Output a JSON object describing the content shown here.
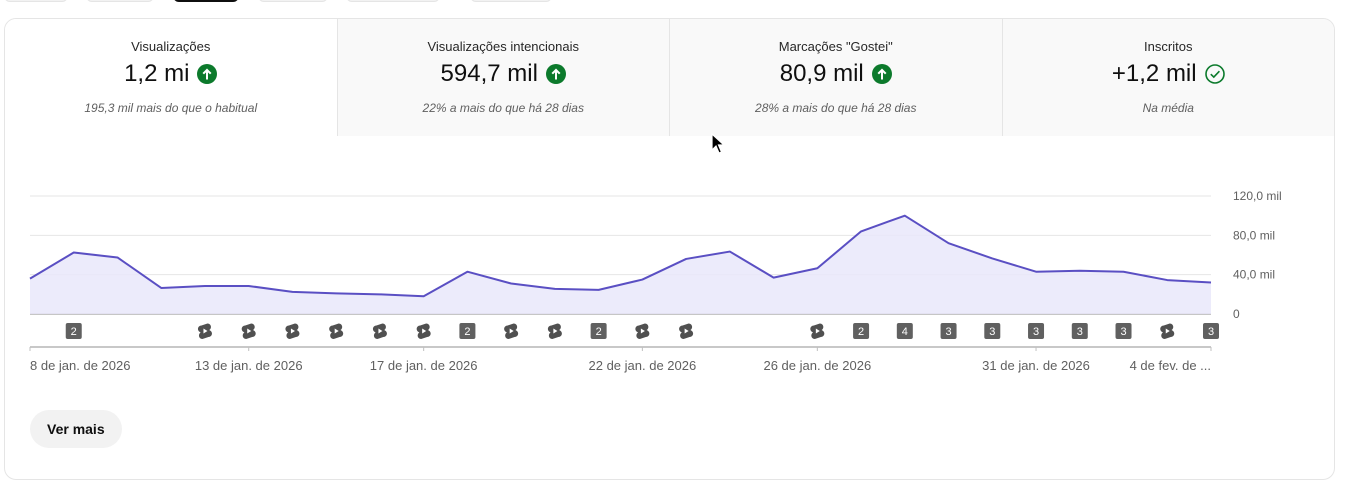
{
  "tabs": [
    {
      "title": "Visualizações",
      "value": "1,2 mi",
      "icon": "arrow-up-circle-icon",
      "subtitle": "195,3 mil mais do que o habitual"
    },
    {
      "title": "Visualizações intencionais",
      "value": "594,7 mil",
      "icon": "arrow-up-circle-icon",
      "subtitle": "22% a mais do que há 28 dias"
    },
    {
      "title": "Marcações \"Gostei\"",
      "value": "80,9 mil",
      "icon": "arrow-up-circle-icon",
      "subtitle": "28% a mais do que há 28 dias"
    },
    {
      "title": "Inscritos",
      "value": "+1,2 mil",
      "icon": "check-circle-icon",
      "subtitle": "Na média"
    }
  ],
  "colors": {
    "up": "#0c7a2c",
    "line": "#5a4fc3",
    "area": "#e9e8fa"
  },
  "chart_data": {
    "type": "area",
    "x": [
      "8/1",
      "9/1",
      "10/1",
      "11/1",
      "12/1",
      "13/1",
      "14/1",
      "15/1",
      "16/1",
      "17/1",
      "18/1",
      "19/1",
      "20/1",
      "21/1",
      "22/1",
      "23/1",
      "24/1",
      "25/1",
      "26/1",
      "27/1",
      "28/1",
      "29/1",
      "30/1",
      "31/1",
      "1/2",
      "2/2",
      "3/2",
      "4/2"
    ],
    "values": [
      36000,
      62500,
      57500,
      26500,
      28500,
      28500,
      22500,
      21000,
      20000,
      18000,
      43000,
      31000,
      25500,
      24500,
      35000,
      56000,
      63500,
      37000,
      46500,
      84000,
      100000,
      72000,
      56500,
      43000,
      44000,
      43000,
      34500,
      32000
    ],
    "ylim": [
      0,
      120000
    ],
    "y_ticks": [
      {
        "value": 0,
        "label": "0"
      },
      {
        "value": 40000,
        "label": "40,0 mil"
      },
      {
        "value": 80000,
        "label": "80,0 mil"
      },
      {
        "value": 120000,
        "label": "120,0 mil"
      }
    ],
    "x_tick_labels": [
      {
        "index": 0,
        "label": "8 de jan. de 2026"
      },
      {
        "index": 5,
        "label": "13 de jan. de 2026"
      },
      {
        "index": 9,
        "label": "17 de jan. de 2026"
      },
      {
        "index": 14,
        "label": "22 de jan. de 2026"
      },
      {
        "index": 18,
        "label": "26 de jan. de 2026"
      },
      {
        "index": 23,
        "label": "31 de jan. de 2026"
      },
      {
        "index": 27,
        "label": "4 de fev. de ..."
      }
    ],
    "markers": [
      {
        "index": 1,
        "type": "count",
        "label": "2"
      },
      {
        "index": 4,
        "type": "shorts"
      },
      {
        "index": 5,
        "type": "shorts"
      },
      {
        "index": 6,
        "type": "shorts"
      },
      {
        "index": 7,
        "type": "shorts"
      },
      {
        "index": 8,
        "type": "shorts"
      },
      {
        "index": 9,
        "type": "shorts"
      },
      {
        "index": 10,
        "type": "count",
        "label": "2"
      },
      {
        "index": 11,
        "type": "shorts"
      },
      {
        "index": 12,
        "type": "shorts"
      },
      {
        "index": 13,
        "type": "count",
        "label": "2"
      },
      {
        "index": 14,
        "type": "shorts"
      },
      {
        "index": 15,
        "type": "shorts"
      },
      {
        "index": 18,
        "type": "shorts"
      },
      {
        "index": 19,
        "type": "count",
        "label": "2"
      },
      {
        "index": 20,
        "type": "count",
        "label": "4"
      },
      {
        "index": 21,
        "type": "count",
        "label": "3"
      },
      {
        "index": 22,
        "type": "count",
        "label": "3"
      },
      {
        "index": 23,
        "type": "count",
        "label": "3"
      },
      {
        "index": 24,
        "type": "count",
        "label": "3"
      },
      {
        "index": 25,
        "type": "count",
        "label": "3"
      },
      {
        "index": 26,
        "type": "shorts"
      },
      {
        "index": 27,
        "type": "count",
        "label": "3"
      }
    ]
  },
  "more_button": {
    "label": "Ver mais"
  }
}
